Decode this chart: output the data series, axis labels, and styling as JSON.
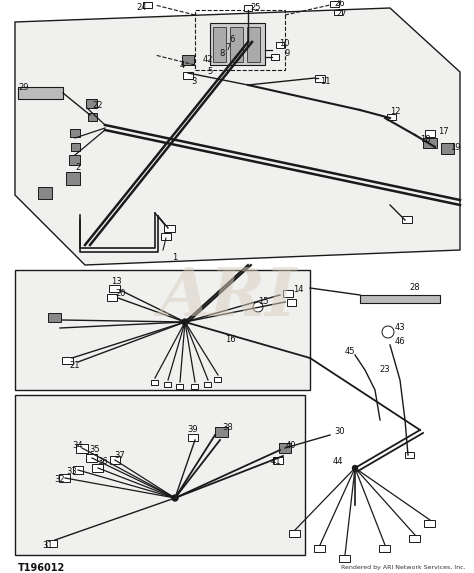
{
  "bg_color": "#ffffff",
  "line_color": "#1a1a1a",
  "panel_fill": "#f0f0ee",
  "watermark_color": "#d8d0c0",
  "title_text": "T196012",
  "footer_text": "Rendered by ARI Network Services, Inc.",
  "fig_width": 4.74,
  "fig_height": 5.73,
  "dpi": 100
}
